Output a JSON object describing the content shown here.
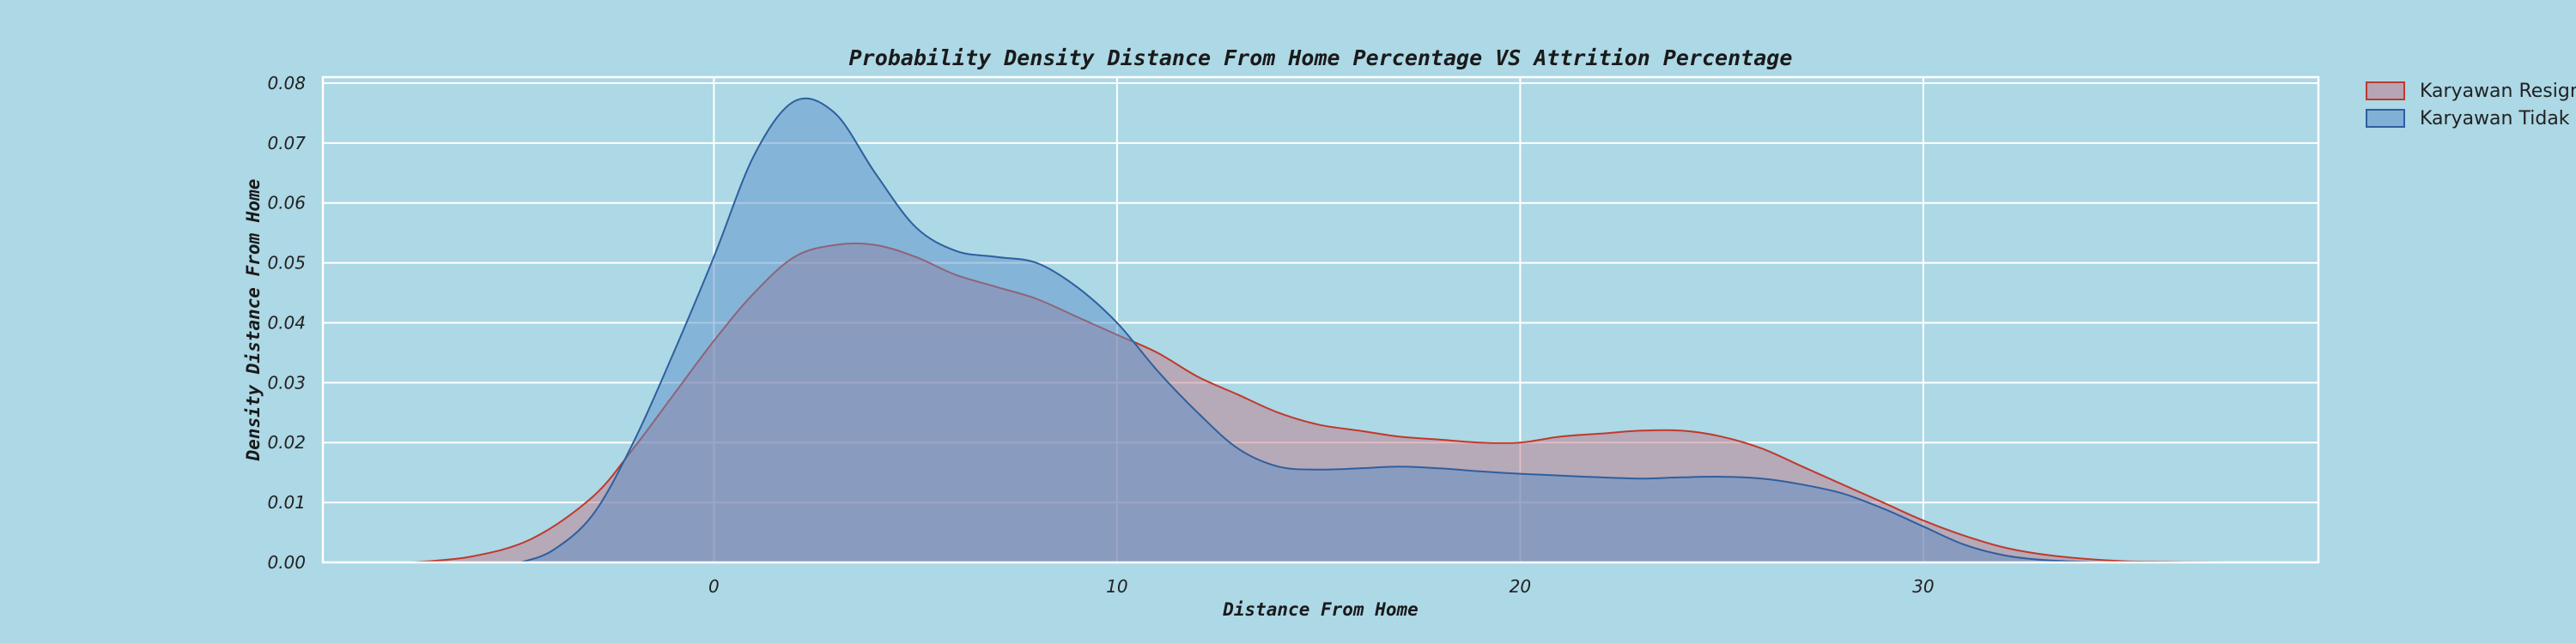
{
  "chart_data": {
    "type": "area",
    "title": "Probability Density Distance From Home Percentage VS Attrition Percentage",
    "xlabel": "Distance From Home",
    "ylabel": "Density Distance From Home",
    "xlim": [
      -9.7,
      39.8
    ],
    "ylim": [
      0,
      0.081
    ],
    "x_ticks": [
      "0",
      "10",
      "20",
      "30"
    ],
    "y_ticks": [
      "0.00",
      "0.01",
      "0.02",
      "0.03",
      "0.04",
      "0.05",
      "0.06",
      "0.07",
      "0.08"
    ],
    "grid": true,
    "legend_position": "outside-top-right",
    "colors": {
      "background": "#add8e6",
      "grid": "#ffffff",
      "resign_fill": "#c07a8a",
      "resign_line": "#c0392b",
      "not_resign_fill": "#5b90c8",
      "not_resign_line": "#2f5f9e"
    },
    "series": [
      {
        "name": "Karyawan Resign",
        "x": [
          -7.5,
          -6,
          -4.5,
          -3,
          -2,
          -1,
          0,
          1,
          2,
          3,
          4,
          5,
          6,
          7,
          8,
          9,
          10,
          11,
          12,
          13,
          14,
          15,
          16,
          17,
          18,
          19,
          20,
          21,
          22,
          23,
          24,
          25,
          26,
          27,
          28,
          29,
          30,
          31,
          32,
          33,
          34,
          35,
          36,
          37.5
        ],
        "values": [
          0.0,
          0.001,
          0.004,
          0.011,
          0.019,
          0.028,
          0.037,
          0.045,
          0.051,
          0.053,
          0.053,
          0.051,
          0.048,
          0.046,
          0.044,
          0.041,
          0.038,
          0.035,
          0.031,
          0.028,
          0.025,
          0.023,
          0.022,
          0.021,
          0.0205,
          0.02,
          0.02,
          0.021,
          0.0215,
          0.022,
          0.022,
          0.021,
          0.019,
          0.016,
          0.013,
          0.01,
          0.007,
          0.0045,
          0.0025,
          0.0013,
          0.0006,
          0.0002,
          0.0001,
          0.0
        ]
      },
      {
        "name": "Karyawan Tidak Resign",
        "x": [
          -4.8,
          -4,
          -3,
          -2,
          -1,
          0,
          1,
          2,
          3,
          4,
          5,
          6,
          7,
          8,
          9,
          10,
          11,
          12,
          13,
          14,
          15,
          16,
          17,
          18,
          19,
          20,
          21,
          22,
          23,
          24,
          25,
          26,
          27,
          28,
          29,
          30,
          31,
          32,
          33,
          34.5
        ],
        "values": [
          0.0,
          0.002,
          0.008,
          0.02,
          0.035,
          0.051,
          0.068,
          0.077,
          0.075,
          0.065,
          0.056,
          0.052,
          0.051,
          0.05,
          0.046,
          0.04,
          0.032,
          0.025,
          0.019,
          0.016,
          0.0155,
          0.0157,
          0.016,
          0.0157,
          0.0152,
          0.0148,
          0.0145,
          0.0142,
          0.014,
          0.0142,
          0.0143,
          0.014,
          0.013,
          0.0115,
          0.009,
          0.006,
          0.003,
          0.0012,
          0.0004,
          0.0
        ]
      }
    ]
  }
}
